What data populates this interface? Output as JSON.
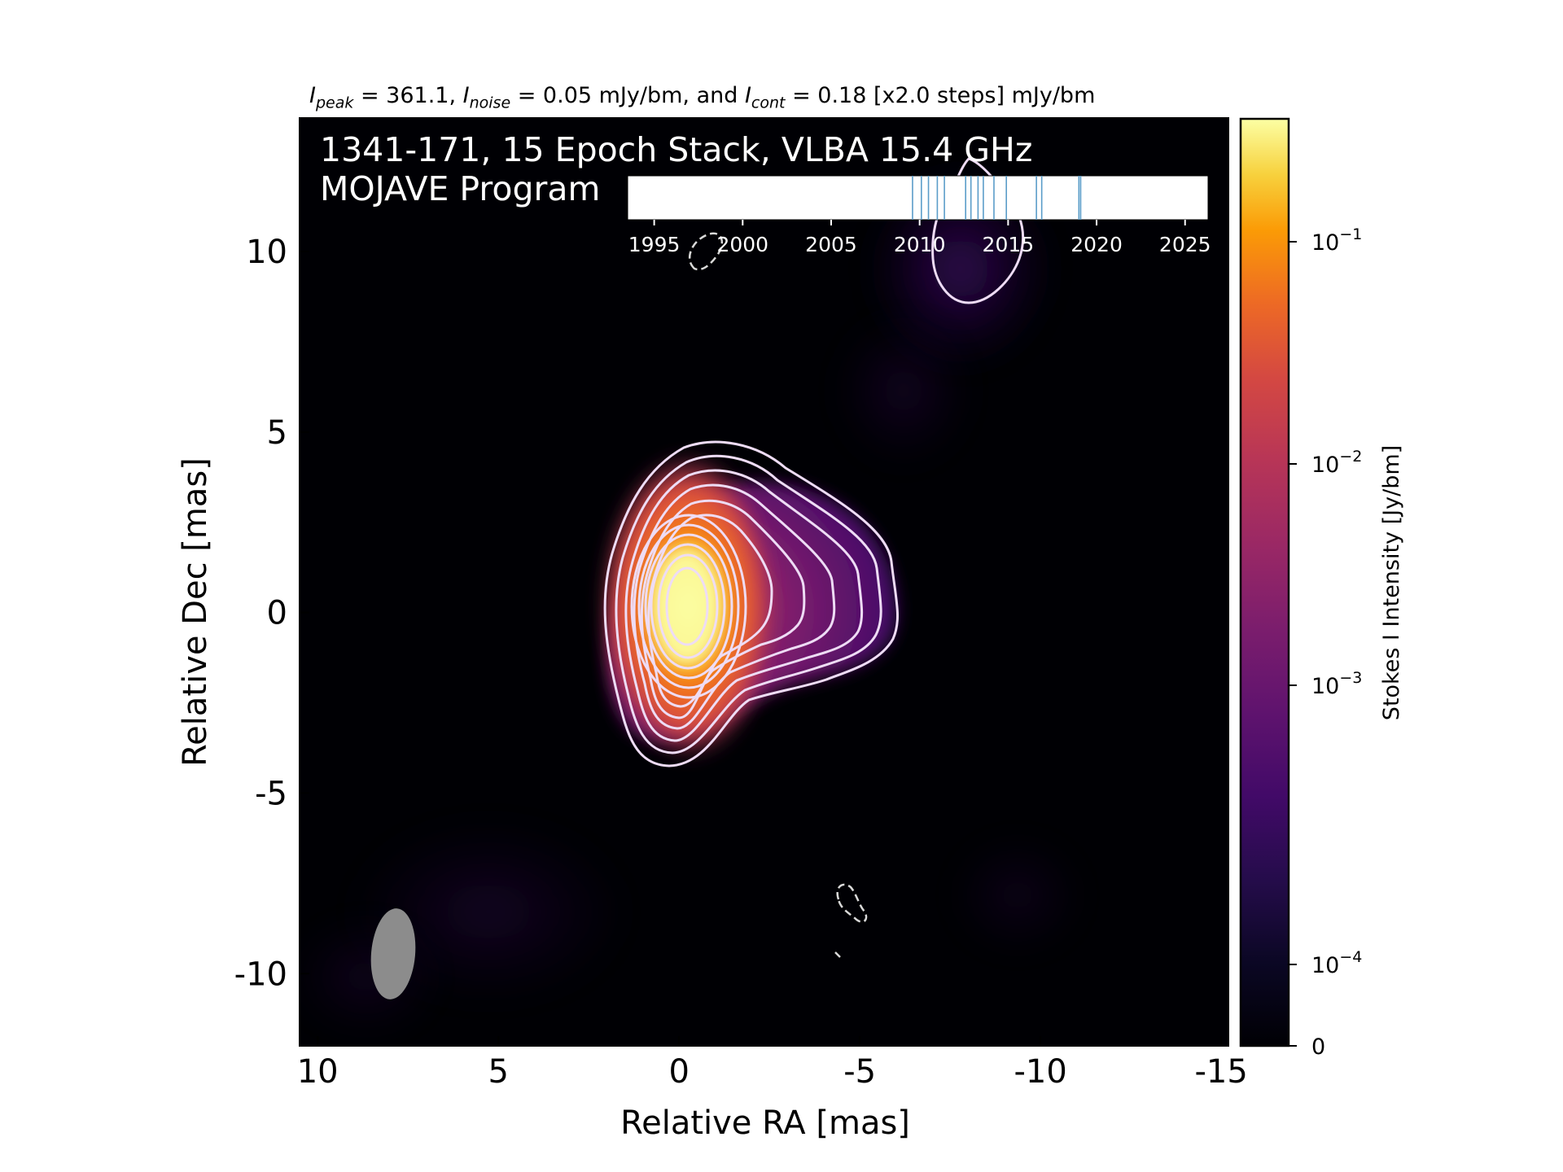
{
  "header_line": {
    "peak_sym": "I",
    "peak_sub": "peak",
    "peak_text": " = 361.1, ",
    "noise_sym": "I",
    "noise_sub": "noise",
    "noise_text": " = 0.05 mJy/bm, and ",
    "cont_sym": "I",
    "cont_sub": "cont",
    "cont_text": " = 0.18 [x2.0 steps] mJy/bm"
  },
  "overlay": {
    "title_line1": "1341-171, 15 Epoch Stack, VLBA 15.4 GHz",
    "title_line2": "MOJAVE Program"
  },
  "colors": {
    "contour": "#eedcf5",
    "beam": "#8c8c8c",
    "epoch_tick": "#5b9dc9"
  },
  "chart_data": [
    {
      "type": "heatmap",
      "xlabel": "Relative RA [mas]",
      "ylabel": "Relative Dec [mas]",
      "xlim": [
        10.5,
        -15.2
      ],
      "ylim": [
        -12.0,
        13.7
      ],
      "xticks": [
        10,
        5,
        0,
        -5,
        -10,
        -15
      ],
      "yticks": [
        -10,
        -5,
        0,
        5,
        10
      ],
      "colormap": "inferno",
      "colorbar": {
        "label": "Stokes I Intensity [Jy/bm]",
        "scale": "log",
        "range": [
          0,
          0.3611
        ],
        "tick_labels": [
          {
            "base": "10",
            "exp": "−1",
            "value": 0.1
          },
          {
            "base": "10",
            "exp": "−2",
            "value": 0.01
          },
          {
            "base": "10",
            "exp": "−3",
            "value": 0.001
          },
          {
            "base": "10",
            "exp": "−4",
            "value": 0.0001
          },
          {
            "base": "0",
            "exp": "",
            "value": 0
          }
        ]
      },
      "peak_position": [
        0,
        0
      ],
      "beam": {
        "ra": 8.2,
        "dec": -9.5,
        "major_mas": 2.5,
        "minor_mas": 1.2,
        "pa_deg": -3
      },
      "contour_base_mJy": 0.18,
      "contour_step_factor": 2.0
    },
    {
      "type": "scatter",
      "description": "epoch timeline inset",
      "xlim": [
        1993.5,
        2026.3
      ],
      "xticks": [
        1995,
        2000,
        2005,
        2010,
        2015,
        2020,
        2025
      ],
      "epochs": [
        2009.6,
        2010.1,
        2010.5,
        2011.0,
        2011.4,
        2012.6,
        2012.9,
        2013.3,
        2013.6,
        2014.2,
        2014.9,
        2016.6,
        2016.9,
        2019.0,
        2019.1
      ]
    }
  ]
}
